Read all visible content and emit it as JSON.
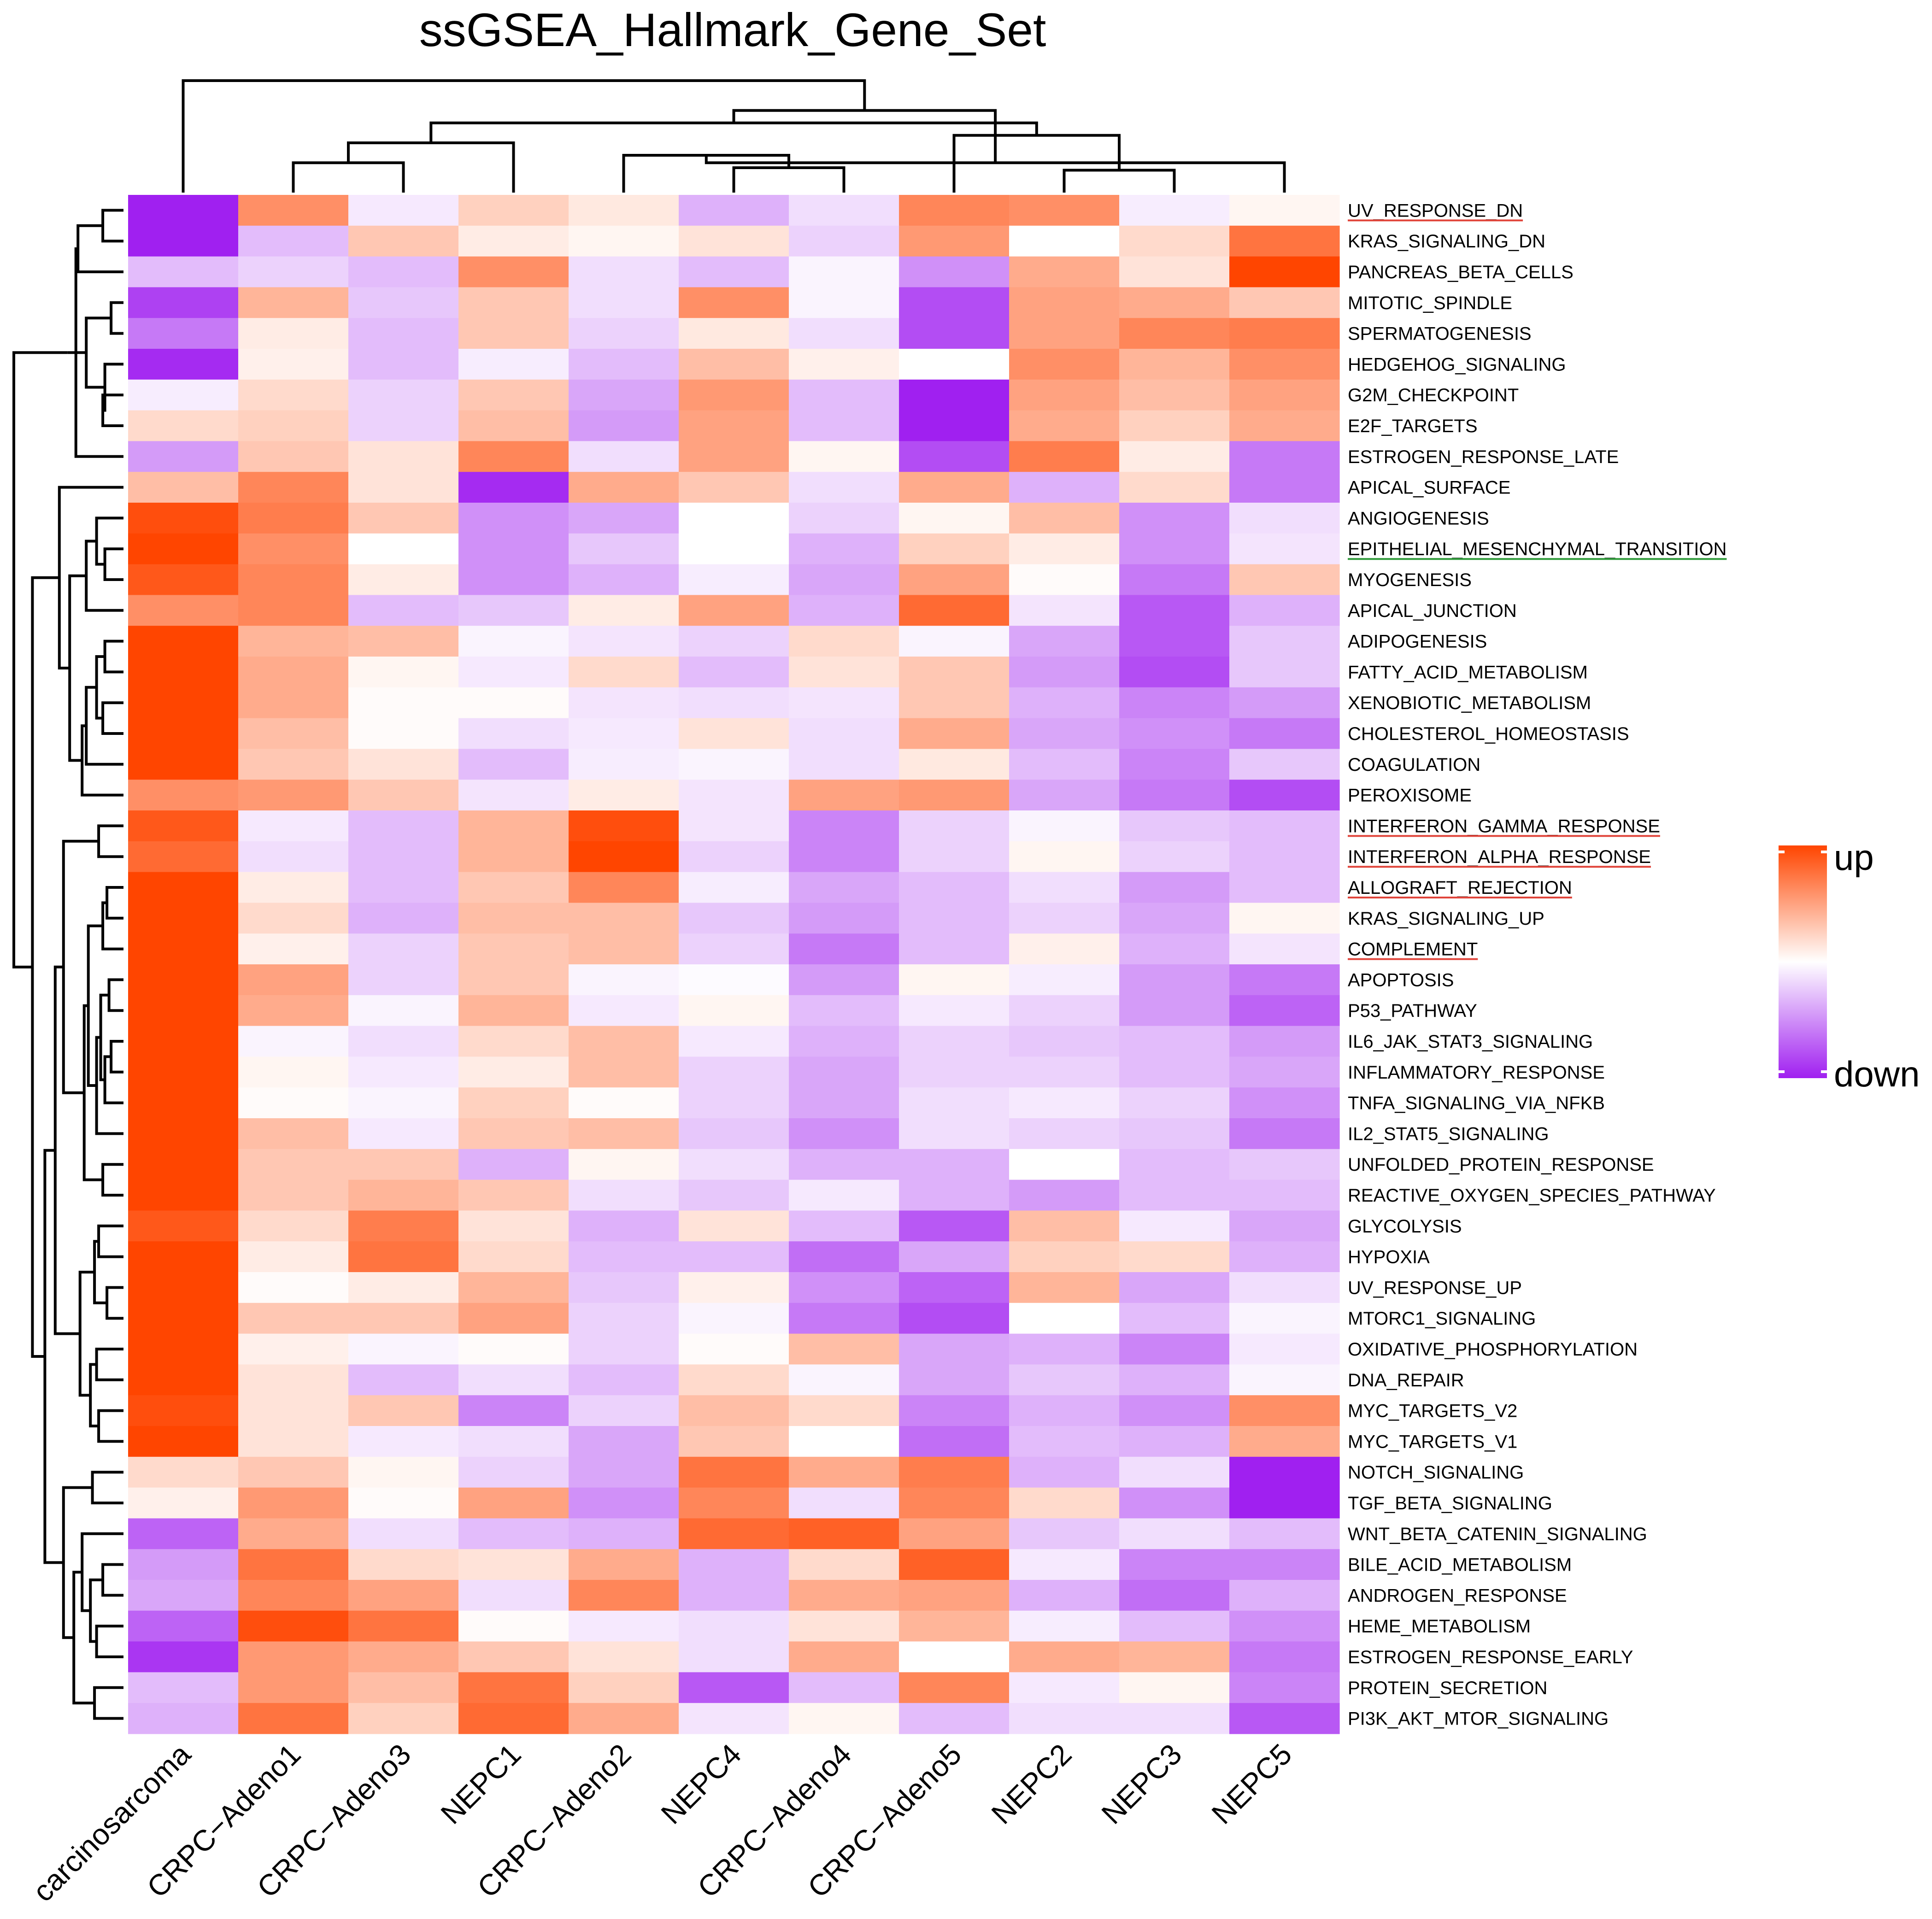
{
  "chart_data": {
    "type": "heatmap",
    "title": "ssGSEA_Hallmark_Gene_Set",
    "columns": [
      "carcinosarcoma",
      "CRPC−Adeno1",
      "CRPC−Adeno3",
      "NEPC1",
      "CRPC−Adeno2",
      "NEPC4",
      "CRPC−Adeno4",
      "CRPC−Adeno5",
      "NEPC2",
      "NEPC3",
      "NEPC5"
    ],
    "rows": [
      {
        "label": "UV_RESPONSE_DN",
        "values": [
          -1.0,
          0.6,
          -0.1,
          0.25,
          0.12,
          -0.35,
          -0.15,
          0.65,
          0.6,
          -0.08,
          0.05
        ],
        "underline": "#e0443a"
      },
      {
        "label": "KRAS_SIGNALING_DN",
        "values": [
          -1.0,
          -0.3,
          0.3,
          0.1,
          0.05,
          0.15,
          -0.2,
          0.55,
          0.0,
          0.2,
          0.75
        ]
      },
      {
        "label": "PANCREAS_BETA_CELLS",
        "values": [
          -0.3,
          -0.2,
          -0.3,
          0.6,
          -0.15,
          -0.3,
          -0.05,
          -0.5,
          0.45,
          0.15,
          1.0
        ]
      },
      {
        "label": "MITOTIC_SPINDLE",
        "values": [
          -0.85,
          0.4,
          -0.25,
          0.3,
          -0.15,
          0.6,
          -0.05,
          -0.8,
          0.5,
          0.45,
          0.3
        ]
      },
      {
        "label": "SPERMATOGENESIS",
        "values": [
          -0.6,
          0.1,
          -0.3,
          0.3,
          -0.2,
          0.12,
          -0.15,
          -0.8,
          0.5,
          0.65,
          0.7
        ]
      },
      {
        "label": "HEDGEHOG_SIGNALING",
        "values": [
          -0.95,
          0.08,
          -0.3,
          -0.08,
          -0.3,
          0.35,
          0.08,
          0.0,
          0.6,
          0.4,
          0.6
        ]
      },
      {
        "label": "G2M_CHECKPOINT",
        "values": [
          -0.08,
          0.2,
          -0.2,
          0.3,
          -0.4,
          0.55,
          -0.3,
          -1.0,
          0.5,
          0.35,
          0.5
        ]
      },
      {
        "label": "E2F_TARGETS",
        "values": [
          0.2,
          0.25,
          -0.2,
          0.35,
          -0.45,
          0.5,
          -0.3,
          -1.0,
          0.45,
          0.25,
          0.45
        ]
      },
      {
        "label": "ESTROGEN_RESPONSE_LATE",
        "values": [
          -0.45,
          0.3,
          0.15,
          0.65,
          -0.15,
          0.5,
          0.05,
          -0.8,
          0.7,
          0.1,
          -0.6
        ]
      },
      {
        "label": "APICAL_SURFACE",
        "values": [
          0.35,
          0.65,
          0.15,
          -0.95,
          0.45,
          0.3,
          -0.15,
          0.45,
          -0.35,
          0.2,
          -0.6
        ]
      },
      {
        "label": "ANGIOGENESIS",
        "values": [
          0.95,
          0.7,
          0.3,
          -0.5,
          -0.4,
          0.0,
          -0.2,
          0.05,
          0.35,
          -0.5,
          -0.15
        ]
      },
      {
        "label": "EPITHELIAL_MESENCHYMAL_TRANSITION",
        "values": [
          1.0,
          0.6,
          0.0,
          -0.5,
          -0.25,
          0.0,
          -0.35,
          0.25,
          0.1,
          -0.5,
          -0.12
        ],
        "underline": "#2f9a3a"
      },
      {
        "label": "MYOGENESIS",
        "values": [
          0.9,
          0.65,
          0.1,
          -0.5,
          -0.35,
          -0.08,
          -0.4,
          0.5,
          0.02,
          -0.6,
          0.3
        ]
      },
      {
        "label": "APICAL_JUNCTION",
        "values": [
          0.6,
          0.65,
          -0.3,
          -0.25,
          0.1,
          0.5,
          -0.35,
          0.8,
          -0.12,
          -0.75,
          -0.35
        ]
      },
      {
        "label": "ADIPOGENESIS",
        "values": [
          1.0,
          0.4,
          0.35,
          -0.05,
          -0.12,
          -0.2,
          0.2,
          -0.05,
          -0.4,
          -0.75,
          -0.25
        ]
      },
      {
        "label": "FATTY_ACID_METABOLISM",
        "values": [
          1.0,
          0.45,
          0.05,
          -0.1,
          0.2,
          -0.3,
          0.15,
          0.3,
          -0.45,
          -0.8,
          -0.25
        ]
      },
      {
        "label": "XENOBIOTIC_METABOLISM",
        "values": [
          1.0,
          0.45,
          0.02,
          0.02,
          -0.12,
          -0.15,
          -0.12,
          0.3,
          -0.35,
          -0.55,
          -0.45
        ]
      },
      {
        "label": "CHOLESTEROL_HOMEOSTASIS",
        "values": [
          1.0,
          0.35,
          0.02,
          -0.15,
          -0.1,
          0.15,
          -0.15,
          0.45,
          -0.4,
          -0.5,
          -0.6
        ]
      },
      {
        "label": "COAGULATION",
        "values": [
          1.0,
          0.3,
          0.15,
          -0.3,
          -0.08,
          -0.05,
          -0.15,
          0.12,
          -0.3,
          -0.55,
          -0.25
        ]
      },
      {
        "label": "PEROXISOME",
        "values": [
          0.6,
          0.55,
          0.3,
          -0.12,
          0.1,
          -0.12,
          0.5,
          0.55,
          -0.4,
          -0.6,
          -0.8
        ]
      },
      {
        "label": "INTERFERON_GAMMA_RESPONSE",
        "values": [
          0.9,
          -0.1,
          -0.3,
          0.4,
          0.95,
          -0.12,
          -0.55,
          -0.2,
          -0.05,
          -0.25,
          -0.3
        ],
        "underline": "#e0443a"
      },
      {
        "label": "INTERFERON_ALPHA_RESPONSE",
        "values": [
          0.8,
          -0.15,
          -0.3,
          0.4,
          1.0,
          -0.2,
          -0.55,
          -0.2,
          0.05,
          -0.2,
          -0.3
        ],
        "underline": "#e0443a"
      },
      {
        "label": "ALLOGRAFT_REJECTION",
        "values": [
          1.0,
          0.1,
          -0.3,
          0.3,
          0.65,
          -0.08,
          -0.4,
          -0.3,
          -0.15,
          -0.45,
          -0.3
        ],
        "underline": "#e0443a"
      },
      {
        "label": "KRAS_SIGNALING_UP",
        "values": [
          1.0,
          0.2,
          -0.35,
          0.35,
          0.35,
          -0.25,
          -0.45,
          -0.3,
          -0.2,
          -0.4,
          0.05
        ]
      },
      {
        "label": "COMPLEMENT",
        "values": [
          1.0,
          0.08,
          -0.2,
          0.3,
          0.35,
          -0.2,
          -0.6,
          -0.3,
          0.08,
          -0.35,
          -0.12
        ],
        "underline": "#e0443a"
      },
      {
        "label": "APOPTOSIS",
        "values": [
          1.0,
          0.5,
          -0.2,
          0.3,
          -0.05,
          -0.02,
          -0.45,
          0.05,
          -0.08,
          -0.45,
          -0.6
        ]
      },
      {
        "label": "P53_PATHWAY",
        "values": [
          1.0,
          0.45,
          -0.05,
          0.4,
          -0.1,
          0.05,
          -0.3,
          -0.1,
          -0.2,
          -0.45,
          -0.7
        ]
      },
      {
        "label": "IL6_JAK_STAT3_SIGNALING",
        "values": [
          1.0,
          -0.05,
          -0.15,
          0.2,
          0.35,
          -0.1,
          -0.35,
          -0.2,
          -0.25,
          -0.3,
          -0.45
        ]
      },
      {
        "label": "INFLAMMATORY_RESPONSE",
        "values": [
          1.0,
          0.05,
          -0.1,
          0.1,
          0.35,
          -0.2,
          -0.4,
          -0.2,
          -0.2,
          -0.3,
          -0.4
        ]
      },
      {
        "label": "TNFA_SIGNALING_VIA_NFKB",
        "values": [
          1.0,
          0.02,
          -0.05,
          0.25,
          0.02,
          -0.2,
          -0.4,
          -0.15,
          -0.1,
          -0.2,
          -0.5
        ]
      },
      {
        "label": "IL2_STAT5_SIGNALING",
        "values": [
          1.0,
          0.35,
          -0.1,
          0.3,
          0.35,
          -0.25,
          -0.5,
          -0.15,
          -0.2,
          -0.25,
          -0.6
        ]
      },
      {
        "label": "UNFOLDED_PROTEIN_RESPONSE",
        "values": [
          1.0,
          0.3,
          0.3,
          -0.35,
          0.05,
          -0.15,
          -0.35,
          -0.35,
          0.0,
          -0.3,
          -0.25
        ]
      },
      {
        "label": "REACTIVE_OXYGEN_SPECIES_PATHWAY",
        "values": [
          1.0,
          0.3,
          0.4,
          0.3,
          -0.15,
          -0.25,
          -0.1,
          -0.35,
          -0.45,
          -0.3,
          -0.3
        ]
      },
      {
        "label": "GLYCOLYSIS",
        "values": [
          0.9,
          0.2,
          0.7,
          0.15,
          -0.35,
          0.15,
          -0.3,
          -0.75,
          0.35,
          -0.1,
          -0.4
        ]
      },
      {
        "label": "HYPOXIA",
        "values": [
          1.0,
          0.1,
          0.75,
          0.2,
          -0.3,
          -0.3,
          -0.65,
          -0.4,
          0.25,
          0.2,
          -0.35
        ]
      },
      {
        "label": "UV_RESPONSE_UP",
        "values": [
          1.0,
          0.02,
          0.1,
          0.4,
          -0.25,
          0.08,
          -0.5,
          -0.7,
          0.4,
          -0.4,
          -0.15
        ]
      },
      {
        "label": "MTORC1_SIGNALING",
        "values": [
          1.0,
          0.3,
          0.3,
          0.5,
          -0.2,
          -0.05,
          -0.6,
          -0.8,
          0.0,
          -0.3,
          -0.05
        ]
      },
      {
        "label": "OXIDATIVE_PHOSPHORYLATION",
        "values": [
          1.0,
          0.08,
          -0.05,
          0.02,
          -0.2,
          0.02,
          0.35,
          -0.4,
          -0.35,
          -0.55,
          -0.1
        ]
      },
      {
        "label": "DNA_REPAIR",
        "values": [
          1.0,
          0.15,
          -0.3,
          -0.15,
          -0.3,
          0.2,
          -0.05,
          -0.4,
          -0.25,
          -0.35,
          -0.05
        ]
      },
      {
        "label": "MYC_TARGETS_V2",
        "values": [
          0.95,
          0.15,
          0.3,
          -0.55,
          -0.2,
          0.35,
          0.2,
          -0.55,
          -0.35,
          -0.5,
          0.6
        ]
      },
      {
        "label": "MYC_TARGETS_V1",
        "values": [
          1.0,
          0.15,
          -0.1,
          -0.15,
          -0.4,
          0.3,
          0.0,
          -0.65,
          -0.3,
          -0.35,
          0.45
        ]
      },
      {
        "label": "NOTCH_SIGNALING",
        "values": [
          0.2,
          0.3,
          0.05,
          -0.2,
          -0.4,
          0.75,
          0.45,
          0.7,
          -0.35,
          -0.15,
          -1.0
        ]
      },
      {
        "label": "TGF_BETA_SIGNALING",
        "values": [
          0.08,
          0.55,
          0.02,
          0.5,
          -0.5,
          0.65,
          -0.15,
          0.65,
          0.2,
          -0.5,
          -1.0
        ]
      },
      {
        "label": "WNT_BETA_CATENIN_SIGNALING",
        "values": [
          -0.7,
          0.45,
          -0.15,
          -0.3,
          -0.35,
          0.8,
          0.85,
          0.5,
          -0.25,
          -0.15,
          -0.3
        ]
      },
      {
        "label": "BILE_ACID_METABOLISM",
        "values": [
          -0.45,
          0.75,
          0.2,
          0.15,
          0.45,
          -0.35,
          0.2,
          0.85,
          -0.1,
          -0.55,
          -0.55
        ]
      },
      {
        "label": "ANDROGEN_RESPONSE",
        "values": [
          -0.4,
          0.65,
          0.5,
          -0.15,
          0.65,
          -0.35,
          0.45,
          0.5,
          -0.35,
          -0.65,
          -0.35
        ]
      },
      {
        "label": "HEME_METABOLISM",
        "values": [
          -0.7,
          0.95,
          0.75,
          0.02,
          -0.1,
          -0.15,
          0.15,
          0.4,
          -0.08,
          -0.3,
          -0.5
        ]
      },
      {
        "label": "ESTROGEN_RESPONSE_EARLY",
        "values": [
          -0.9,
          0.55,
          0.45,
          0.3,
          0.15,
          -0.15,
          0.45,
          0.0,
          0.45,
          0.4,
          -0.6
        ]
      },
      {
        "label": "PROTEIN_SECRETION",
        "values": [
          -0.3,
          0.55,
          0.35,
          0.75,
          0.25,
          -0.75,
          -0.3,
          0.65,
          -0.1,
          0.05,
          -0.55
        ]
      },
      {
        "label": "PI3K_AKT_MTOR_SIGNALING",
        "values": [
          -0.35,
          0.75,
          0.25,
          0.8,
          0.45,
          -0.12,
          0.05,
          -0.3,
          -0.15,
          -0.15,
          -0.75
        ]
      }
    ],
    "value_range": [
      -1,
      1
    ],
    "colors": {
      "low": "#a020f0",
      "mid": "#ffffff",
      "high": "#ff4500"
    },
    "legend": {
      "high_label": "up",
      "low_label": "down",
      "position": "right"
    },
    "col_dendrogram": [
      [
        1,
        2,
        1.2
      ],
      [
        5,
        6,
        1.0
      ],
      [
        8,
        9,
        0.9
      ],
      [
        4,
        12,
        1.5
      ],
      [
        11,
        3,
        2.0
      ],
      [
        13,
        7,
        2.3
      ],
      [
        10,
        14,
        1.2
      ],
      [
        15,
        16,
        2.8
      ],
      [
        17,
        18,
        3.3
      ],
      [
        0,
        19,
        4.5
      ]
    ],
    "row_dendrogram": [
      [
        0,
        1,
        1.0
      ],
      [
        3,
        4,
        0.6
      ],
      [
        6,
        7,
        1.0
      ],
      [
        52,
        5,
        0.9
      ],
      [
        51,
        53,
        1.8
      ],
      [
        50,
        2,
        2.2
      ],
      [
        55,
        8,
        2.3
      ],
      [
        54,
        56,
        2.7
      ],
      [
        11,
        12,
        0.9
      ],
      [
        58,
        10,
        1.3
      ],
      [
        59,
        13,
        1.8
      ],
      [
        14,
        15,
        0.9
      ],
      [
        16,
        17,
        1.0
      ],
      [
        61,
        62,
        1.3
      ],
      [
        63,
        18,
        1.8
      ],
      [
        64,
        19,
        2.0
      ],
      [
        60,
        65,
        2.6
      ],
      [
        9,
        66,
        3.1
      ],
      [
        20,
        21,
        1.2
      ],
      [
        22,
        23,
        0.8
      ],
      [
        69,
        24,
        1.0
      ],
      [
        25,
        26,
        0.7
      ],
      [
        27,
        28,
        0.6
      ],
      [
        72,
        29,
        0.9
      ],
      [
        71,
        73,
        1.1
      ],
      [
        74,
        30,
        1.3
      ],
      [
        70,
        75,
        1.7
      ],
      [
        31,
        32,
        1.0
      ],
      [
        76,
        77,
        1.9
      ],
      [
        68,
        78,
        2.9
      ],
      [
        33,
        34,
        1.2
      ],
      [
        35,
        36,
        0.8
      ],
      [
        80,
        81,
        1.4
      ],
      [
        37,
        38,
        1.3
      ],
      [
        39,
        40,
        1.2
      ],
      [
        83,
        84,
        1.6
      ],
      [
        82,
        85,
        2.1
      ],
      [
        79,
        86,
        3.3
      ],
      [
        41,
        42,
        1.5
      ],
      [
        44,
        45,
        1.0
      ],
      [
        46,
        47,
        1.3
      ],
      [
        89,
        90,
        1.6
      ],
      [
        43,
        91,
        2.0
      ],
      [
        48,
        49,
        1.4
      ],
      [
        92,
        93,
        2.4
      ],
      [
        88,
        94,
        2.9
      ],
      [
        87,
        95,
        3.8
      ],
      [
        67,
        96,
        4.4
      ],
      [
        57,
        97,
        5.3
      ]
    ]
  }
}
